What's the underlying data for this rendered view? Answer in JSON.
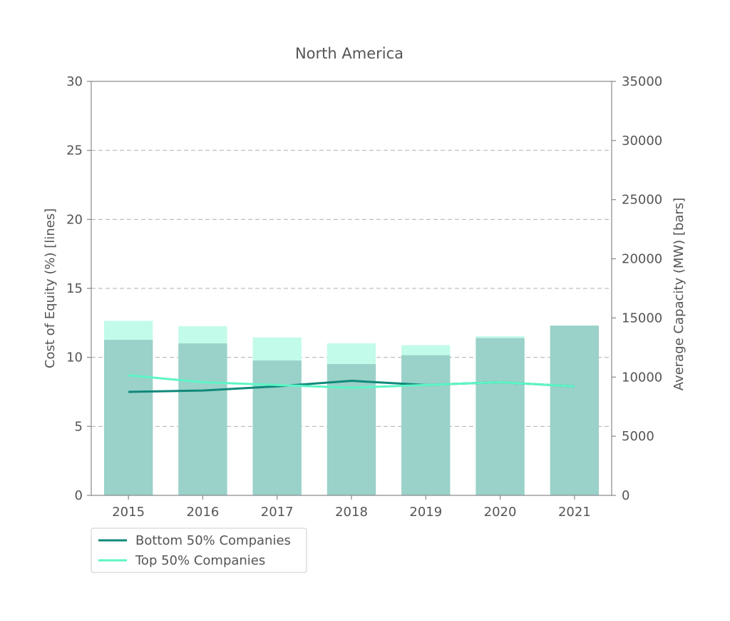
{
  "chart_data": {
    "type": "bar+line",
    "title": "North America",
    "categories": [
      "2015",
      "2016",
      "2017",
      "2018",
      "2019",
      "2020",
      "2021"
    ],
    "y_left": {
      "label": "Cost of Equity (%) [lines]",
      "lim": [
        0,
        30
      ],
      "ticks": [
        "0",
        "5",
        "10",
        "15",
        "20",
        "25",
        "30"
      ]
    },
    "y_right": {
      "label": "Average Capacity (MW) [bars]",
      "lim": [
        0,
        35000
      ],
      "ticks": [
        "0",
        "5000",
        "10000",
        "15000",
        "20000",
        "25000",
        "30000",
        "35000"
      ]
    },
    "grid": "horizontal-dashed",
    "legend_position": "bottom-left",
    "bar_series": [
      {
        "values": [
          14750,
          14300,
          13350,
          12850,
          12700,
          13450,
          14350
        ],
        "color": "#c2fbe9"
      },
      {
        "values": [
          13150,
          12850,
          11400,
          11100,
          11850,
          13300,
          14350
        ],
        "color": "#9ad1c9"
      }
    ],
    "line_series": [
      {
        "name": "Bottom 50% Companies",
        "values": [
          7.5,
          7.6,
          7.9,
          8.3,
          8.0,
          8.2,
          7.9
        ],
        "color": "#10897a"
      },
      {
        "name": "Top 50% Companies",
        "values": [
          8.7,
          8.2,
          8.0,
          7.8,
          8.0,
          8.2,
          7.9
        ],
        "color": "#5ef5c6"
      }
    ]
  }
}
